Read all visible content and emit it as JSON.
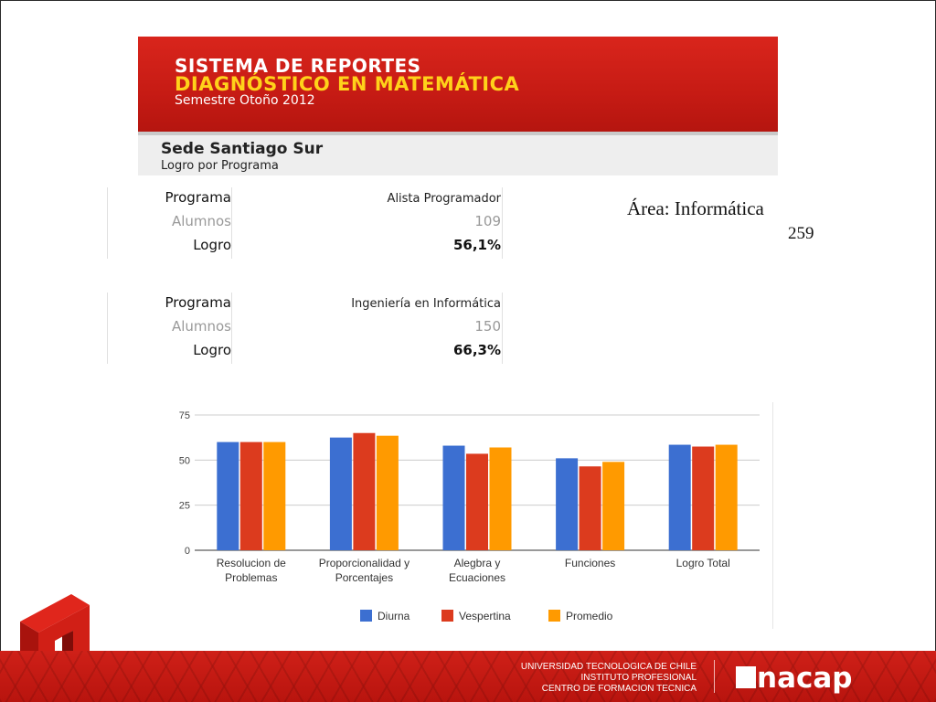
{
  "banner": {
    "line1": "SISTEMA DE REPORTES",
    "line2": "DIAGNÓSTICO EN MATEMÁTICA",
    "line3": "Semestre Otoño 2012"
  },
  "subheader": {
    "sede": "Sede Santiago Sur",
    "subtitle": "Logro por Programa"
  },
  "programs": [
    {
      "label_programa": "Programa",
      "programa": "Alista Programador",
      "label_alumnos": "Alumnos",
      "alumnos": "109",
      "label_logro": "Logro",
      "logro": "56,1%"
    },
    {
      "label_programa": "Programa",
      "programa": "Ingeniería en Informática",
      "label_alumnos": "Alumnos",
      "alumnos": "150",
      "label_logro": "Logro",
      "logro": "66,3%"
    }
  ],
  "area_label": "Área: Informática",
  "area_count": "259",
  "footer": {
    "line1": "UNIVERSIDAD TECNOLOGICA DE CHILE",
    "line2": "INSTITUTO PROFESIONAL",
    "line3": "CENTRO DE FORMACION TECNICA",
    "logo_text": "nacap"
  },
  "colors": {
    "brand_red": "#c61b14",
    "title_yellow": "#ffd21a"
  },
  "chart_data": {
    "type": "bar",
    "categories": [
      [
        "Resolucion de",
        "Problemas"
      ],
      [
        "Proporcionalidad y",
        "Porcentajes"
      ],
      [
        "Alegbra y",
        "Ecuaciones"
      ],
      [
        "Funciones"
      ],
      [
        "Logro Total"
      ]
    ],
    "series": [
      {
        "name": "Diurna",
        "color": "#3c6fd1",
        "values": [
          60,
          62.5,
          58,
          51,
          58.5
        ]
      },
      {
        "name": "Vespertina",
        "color": "#dc3b1e",
        "values": [
          60,
          65,
          53.5,
          46.5,
          57.5
        ]
      },
      {
        "name": "Promedio",
        "color": "#ff9a00",
        "values": [
          60,
          63.5,
          57,
          49,
          58.5
        ]
      }
    ],
    "yticks": [
      0,
      25,
      50,
      75
    ],
    "ylim": [
      0,
      75
    ],
    "grid": true,
    "legend_position": "bottom"
  }
}
